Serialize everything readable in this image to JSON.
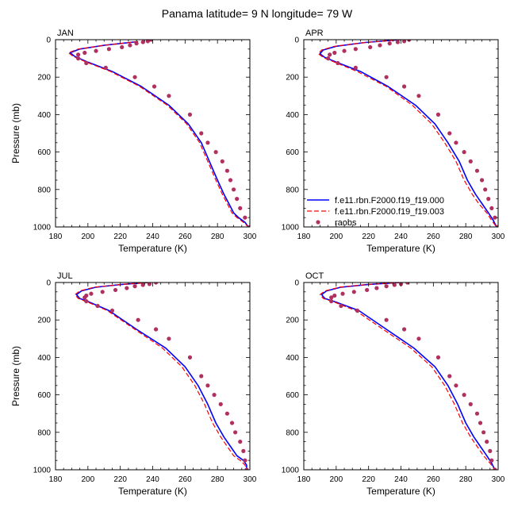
{
  "figure": {
    "title": "Panama  latitude= 9 N longitude= 79 W"
  },
  "legend": {
    "entries": [
      {
        "label": "f.e11.rbn.F2000.f19_f19.000",
        "color": "#0000ff",
        "style": "solid"
      },
      {
        "label": "f.e11.rbn.F2000.f19_f19.003",
        "color": "#ff0000",
        "style": "dashed"
      },
      {
        "label": "raobs",
        "color": "#b03060",
        "style": "marker"
      }
    ]
  },
  "chart_data": [
    {
      "type": "line",
      "title": "JAN",
      "xlabel": "Temperature (K)",
      "ylabel": "Pressure (mb)",
      "xlim": [
        180,
        300
      ],
      "ylim": [
        1000,
        0
      ],
      "xticks": [
        180,
        200,
        220,
        240,
        260,
        280,
        300
      ],
      "yticks": [
        0,
        200,
        400,
        600,
        800,
        1000
      ],
      "series": [
        {
          "name": "f.e11.rbn.F2000.f19_f19.000",
          "x": [
            231,
            210,
            195,
            189,
            192,
            200,
            215,
            233,
            250,
            262,
            270,
            275,
            280,
            284,
            287,
            290,
            293,
            297,
            299
          ],
          "y": [
            10,
            30,
            50,
            70,
            90,
            120,
            170,
            250,
            350,
            450,
            550,
            650,
            750,
            825,
            875,
            925,
            950,
            975,
            1000
          ]
        },
        {
          "name": "f.e11.rbn.F2000.f19_f19.003",
          "x": [
            231,
            210,
            194,
            188,
            191,
            199,
            214,
            232,
            249,
            261,
            269,
            274,
            279,
            283,
            286,
            289,
            292,
            296,
            299
          ],
          "y": [
            10,
            30,
            50,
            70,
            90,
            120,
            170,
            250,
            350,
            450,
            550,
            650,
            750,
            825,
            875,
            925,
            950,
            975,
            1000
          ]
        },
        {
          "name": "raobs",
          "x": [
            239,
            237,
            234,
            230,
            226,
            221,
            213,
            205,
            198,
            194,
            194,
            199,
            211,
            229,
            241,
            250,
            263,
            270,
            274,
            279,
            283,
            286,
            288,
            290,
            292,
            294,
            297,
            300
          ],
          "y": [
            0,
            8,
            13,
            20,
            30,
            40,
            50,
            60,
            70,
            80,
            100,
            125,
            150,
            200,
            250,
            300,
            400,
            500,
            550,
            600,
            650,
            700,
            750,
            800,
            850,
            900,
            950,
            1000
          ]
        }
      ]
    },
    {
      "type": "line",
      "title": "APR",
      "xlabel": "Temperature (K)",
      "ylabel": "",
      "xlim": [
        180,
        300
      ],
      "ylim": [
        1000,
        0
      ],
      "xticks": [
        180,
        200,
        220,
        240,
        260,
        280,
        300
      ],
      "yticks": [
        0,
        200,
        400,
        600,
        800,
        1000
      ],
      "series": [
        {
          "name": "f.e11.rbn.F2000.f19_f19.000",
          "x": [
            240,
            218,
            200,
            192,
            190,
            193,
            200,
            215,
            232,
            249,
            261,
            269,
            276,
            281,
            286,
            290,
            294,
            297,
            299
          ],
          "y": [
            0,
            15,
            35,
            55,
            75,
            95,
            120,
            170,
            250,
            350,
            450,
            550,
            650,
            750,
            825,
            875,
            925,
            965,
            1000
          ]
        },
        {
          "name": "f.e11.rbn.F2000.f19_f19.003",
          "x": [
            240,
            218,
            199,
            191,
            189,
            192,
            199,
            213,
            231,
            247,
            259,
            267,
            274,
            279,
            284,
            288,
            293,
            296,
            299
          ],
          "y": [
            0,
            15,
            35,
            55,
            75,
            95,
            120,
            170,
            250,
            350,
            450,
            550,
            650,
            750,
            825,
            875,
            925,
            965,
            1000
          ]
        },
        {
          "name": "raobs",
          "x": [
            245,
            242,
            238,
            233,
            227,
            221,
            212,
            205,
            199,
            196,
            195,
            201,
            212,
            231,
            242,
            251,
            263,
            270,
            274,
            279,
            283,
            287,
            290,
            292,
            294,
            296,
            298,
            300
          ],
          "y": [
            0,
            8,
            13,
            20,
            30,
            40,
            50,
            60,
            70,
            80,
            100,
            125,
            150,
            200,
            250,
            300,
            400,
            500,
            550,
            600,
            650,
            700,
            750,
            800,
            850,
            900,
            950,
            1000
          ]
        }
      ]
    },
    {
      "type": "line",
      "title": "JUL",
      "xlabel": "Temperature (K)",
      "ylabel": "Pressure (mb)",
      "xlim": [
        180,
        300
      ],
      "ylim": [
        1000,
        0
      ],
      "xticks": [
        180,
        200,
        220,
        240,
        260,
        280,
        300
      ],
      "yticks": [
        0,
        200,
        400,
        600,
        800,
        1000
      ],
      "series": [
        {
          "name": "f.e11.rbn.F2000.f19_f19.000",
          "x": [
            238,
            221,
            205,
            196,
            193,
            195,
            201,
            213,
            230,
            248,
            260,
            268,
            274,
            279,
            284,
            288,
            292,
            296,
            298,
            298
          ],
          "y": [
            0,
            10,
            25,
            45,
            65,
            85,
            105,
            150,
            250,
            350,
            450,
            550,
            650,
            750,
            825,
            875,
            925,
            950,
            975,
            1000
          ]
        },
        {
          "name": "f.e11.rbn.F2000.f19_f19.003",
          "x": [
            238,
            221,
            204,
            195,
            192,
            194,
            200,
            212,
            229,
            246,
            258,
            266,
            272,
            277,
            282,
            286,
            290,
            294,
            297,
            298
          ],
          "y": [
            0,
            10,
            25,
            45,
            65,
            85,
            105,
            150,
            250,
            350,
            450,
            550,
            650,
            750,
            825,
            875,
            925,
            950,
            975,
            1000
          ]
        },
        {
          "name": "raobs",
          "x": [
            242,
            238,
            234,
            229,
            224,
            217,
            209,
            202,
            199,
            198,
            199,
            206,
            215,
            231,
            242,
            250,
            263,
            270,
            274,
            278,
            282,
            286,
            289,
            291,
            294,
            296,
            297,
            298
          ],
          "y": [
            0,
            8,
            13,
            20,
            30,
            40,
            50,
            60,
            70,
            80,
            100,
            125,
            150,
            200,
            250,
            300,
            400,
            500,
            550,
            600,
            650,
            700,
            750,
            800,
            850,
            900,
            950,
            1000
          ]
        }
      ]
    },
    {
      "type": "line",
      "title": "OCT",
      "xlabel": "Temperature (K)",
      "ylabel": "",
      "xlim": [
        180,
        300
      ],
      "ylim": [
        1000,
        0
      ],
      "xticks": [
        180,
        200,
        220,
        240,
        260,
        280,
        300
      ],
      "yticks": [
        0,
        200,
        400,
        600,
        800,
        1000
      ],
      "series": [
        {
          "name": "f.e11.rbn.F2000.f19_f19.000",
          "x": [
            240,
            220,
            203,
            194,
            191,
            193,
            200,
            214,
            231,
            248,
            261,
            269,
            275,
            280,
            285,
            289,
            293,
            296,
            298
          ],
          "y": [
            0,
            10,
            25,
            45,
            65,
            85,
            105,
            150,
            250,
            350,
            450,
            550,
            650,
            750,
            825,
            875,
            925,
            965,
            1000
          ]
        },
        {
          "name": "f.e11.rbn.F2000.f19_f19.003",
          "x": [
            240,
            220,
            202,
            193,
            190,
            192,
            199,
            212,
            229,
            246,
            259,
            267,
            273,
            278,
            283,
            287,
            291,
            295,
            298
          ],
          "y": [
            0,
            10,
            25,
            45,
            65,
            85,
            105,
            150,
            250,
            350,
            450,
            550,
            650,
            750,
            825,
            875,
            925,
            965,
            1000
          ]
        },
        {
          "name": "raobs",
          "x": [
            244,
            240,
            236,
            231,
            225,
            219,
            211,
            204,
            199,
            197,
            197,
            203,
            213,
            231,
            242,
            251,
            263,
            270,
            274,
            279,
            283,
            287,
            289,
            291,
            293,
            295,
            296,
            298
          ],
          "y": [
            0,
            8,
            13,
            20,
            30,
            40,
            50,
            60,
            70,
            80,
            100,
            125,
            150,
            200,
            250,
            300,
            400,
            500,
            550,
            600,
            650,
            700,
            750,
            800,
            850,
            900,
            950,
            1000
          ]
        }
      ]
    }
  ]
}
